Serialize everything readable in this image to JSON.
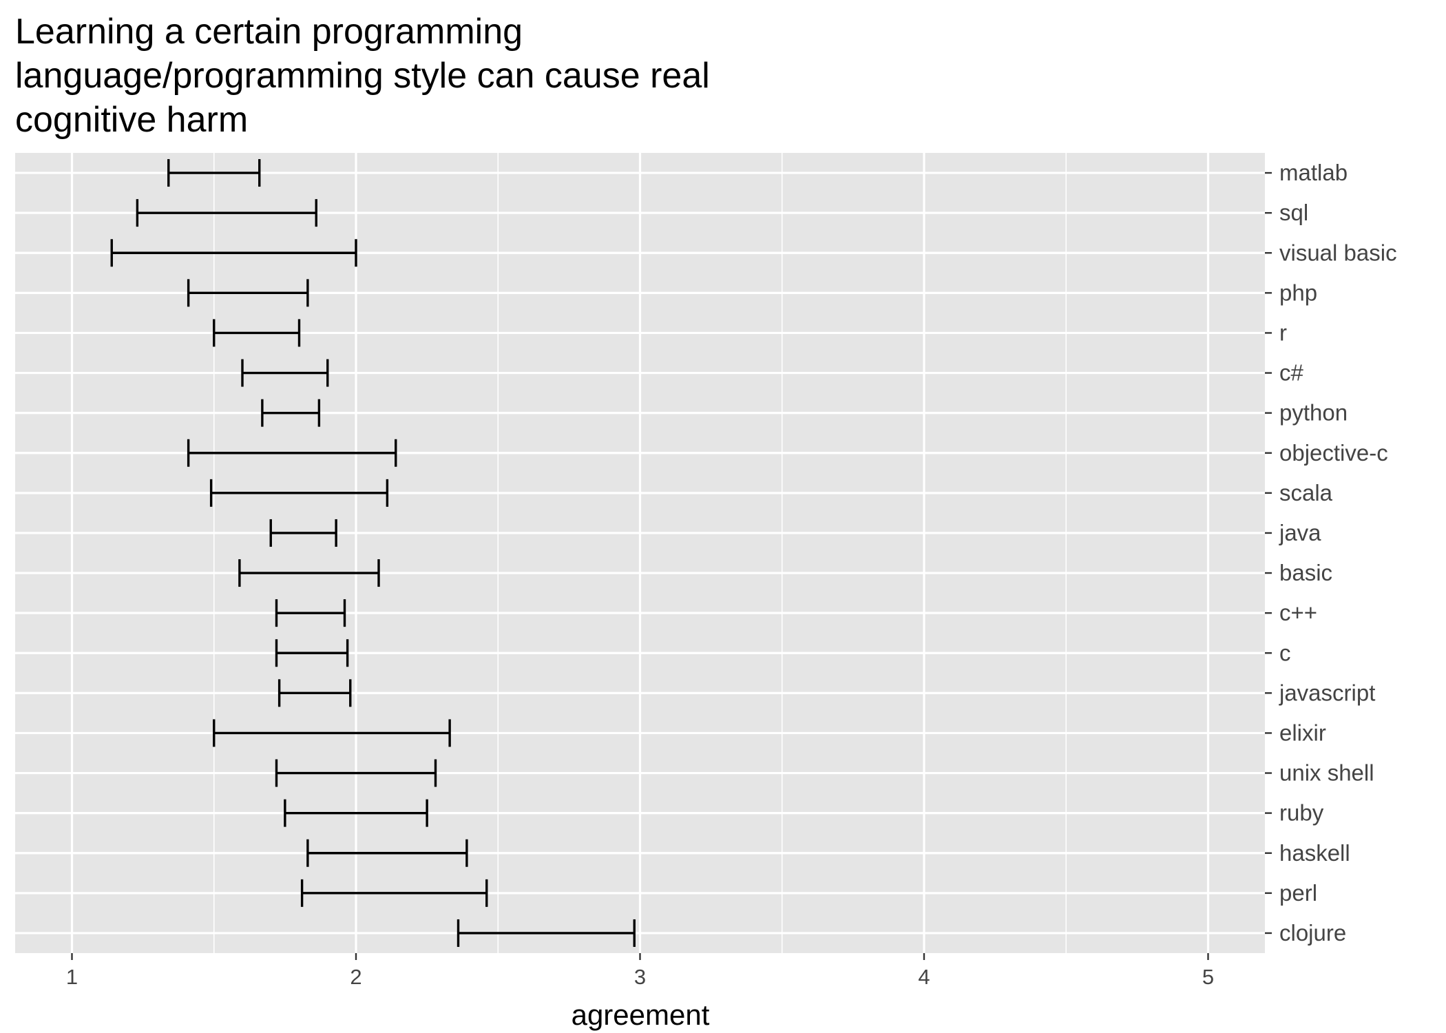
{
  "chart_data": {
    "type": "errorbar",
    "orientation": "horizontal",
    "title_lines": [
      "Learning a certain programming",
      "language/programming style can cause real",
      "cognitive harm"
    ],
    "xlabel": "agreement",
    "ylabel": "",
    "xlim": [
      0.8,
      5.2
    ],
    "x_ticks": [
      1,
      2,
      3,
      4,
      5
    ],
    "y_axis_position": "right",
    "grid": true,
    "legend": "none",
    "colors": {
      "panel": "#e5e5e5",
      "grid": "#ffffff",
      "bar": "#000000",
      "text": "#444444"
    },
    "categories": [
      {
        "label": "matlab",
        "low": 1.34,
        "high": 1.66
      },
      {
        "label": "sql",
        "low": 1.23,
        "high": 1.86
      },
      {
        "label": "visual basic",
        "low": 1.14,
        "high": 2.0
      },
      {
        "label": "php",
        "low": 1.41,
        "high": 1.83
      },
      {
        "label": "r",
        "low": 1.5,
        "high": 1.8
      },
      {
        "label": "c#",
        "low": 1.6,
        "high": 1.9
      },
      {
        "label": "python",
        "low": 1.67,
        "high": 1.87
      },
      {
        "label": "objective-c",
        "low": 1.41,
        "high": 2.14
      },
      {
        "label": "scala",
        "low": 1.49,
        "high": 2.11
      },
      {
        "label": "java",
        "low": 1.7,
        "high": 1.93
      },
      {
        "label": "basic",
        "low": 1.59,
        "high": 2.08
      },
      {
        "label": "c++",
        "low": 1.72,
        "high": 1.96
      },
      {
        "label": "c",
        "low": 1.72,
        "high": 1.97
      },
      {
        "label": "javascript",
        "low": 1.73,
        "high": 1.98
      },
      {
        "label": "elixir",
        "low": 1.5,
        "high": 2.33
      },
      {
        "label": "unix shell",
        "low": 1.72,
        "high": 2.28
      },
      {
        "label": "ruby",
        "low": 1.75,
        "high": 2.25
      },
      {
        "label": "haskell",
        "low": 1.83,
        "high": 2.39
      },
      {
        "label": "perl",
        "low": 1.81,
        "high": 2.46
      },
      {
        "label": "clojure",
        "low": 2.36,
        "high": 2.98
      }
    ]
  }
}
